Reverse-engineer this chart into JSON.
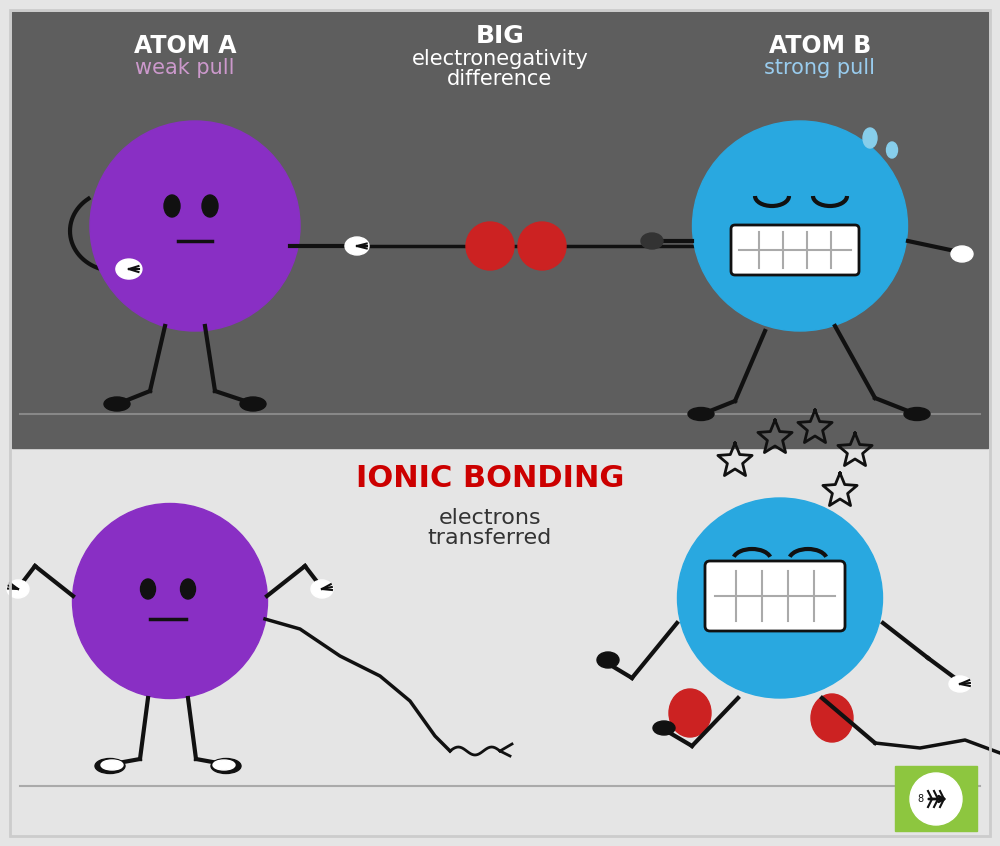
{
  "bg_top": "#5e5e5e",
  "bg_bottom": "#e5e5e5",
  "purple_color": "#892FC4",
  "blue_color": "#29A8E0",
  "red_color": "#CC2222",
  "white": "#FFFFFF",
  "black": "#111111",
  "atom_a_label": "ATOM A",
  "atom_b_label": "ATOM B",
  "weak_pull_label": "weak pull",
  "strong_pull_label": "strong pull",
  "big_label": "BIG",
  "electro_label": "electronegativity",
  "diff_label": "difference",
  "ionic_label": "IONIC BONDING",
  "electrons_label": "electrons\ntransferred",
  "ionic_color": "#CC0000",
  "weak_pull_color": "#CC99CC",
  "strong_pull_color": "#99CCEE",
  "logo_green": "#8DC63F",
  "fig_width": 10.0,
  "fig_height": 8.46
}
